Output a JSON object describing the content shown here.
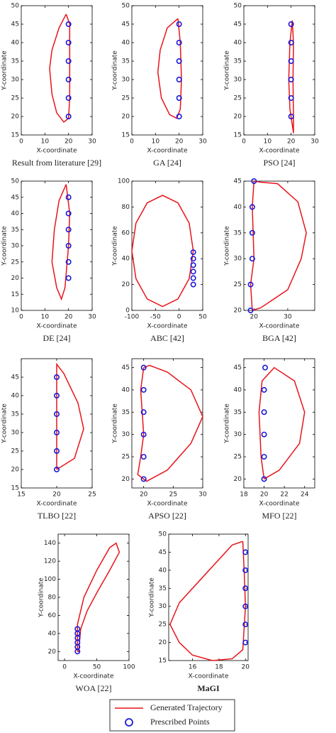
{
  "chart_data": [
    {
      "type": "line",
      "caption": "Result from literature [29]",
      "xlabel": "X-coordinate",
      "ylabel": "Y-coordinate",
      "xlim": [
        0,
        30
      ],
      "xticks": [
        0,
        10,
        20,
        30
      ],
      "ylim": [
        15,
        50
      ],
      "yticks": [
        15,
        20,
        25,
        30,
        35,
        40,
        45,
        50
      ],
      "series": [
        {
          "color": "#e8141b",
          "x": [
            19,
            16,
            13,
            12,
            13,
            15,
            18,
            20,
            20.5,
            20.5,
            20.5,
            19
          ],
          "y": [
            47.7,
            44,
            38,
            33,
            26,
            21,
            18.5,
            19.5,
            25,
            35,
            45,
            47.7
          ]
        },
        {
          "color": "#1a1ad6",
          "marker": "circle",
          "x": [
            20,
            20,
            20,
            20,
            20,
            20
          ],
          "y": [
            45,
            40,
            35,
            30,
            25,
            20
          ]
        }
      ]
    },
    {
      "type": "line",
      "caption": "GA [24]",
      "xlabel": "X-coordinate",
      "ylabel": "Y-coordinate",
      "xlim": [
        0,
        30
      ],
      "xticks": [
        0,
        10,
        20,
        30
      ],
      "ylim": [
        15,
        50
      ],
      "yticks": [
        15,
        20,
        25,
        30,
        35,
        40,
        45,
        50
      ],
      "series": [
        {
          "color": "#e8141b",
          "x": [
            19.5,
            15,
            12,
            11,
            12.5,
            16,
            19,
            20.5,
            21,
            20.5,
            19.5
          ],
          "y": [
            46.5,
            44,
            38,
            32,
            25,
            20.5,
            19.5,
            22,
            30,
            40,
            46.5
          ]
        },
        {
          "color": "#1a1ad6",
          "marker": "circle",
          "x": [
            20,
            20,
            20,
            20,
            20,
            20
          ],
          "y": [
            45,
            40,
            35,
            30,
            25,
            20
          ]
        }
      ]
    },
    {
      "type": "line",
      "caption": "PSO [24]",
      "xlabel": "X-coordinate",
      "ylabel": "Y-coordinate",
      "xlim": [
        0,
        30
      ],
      "xticks": [
        0,
        10,
        20,
        30
      ],
      "ylim": [
        15,
        50
      ],
      "yticks": [
        15,
        20,
        25,
        30,
        35,
        40,
        45,
        50
      ],
      "series": [
        {
          "color": "#e8141b",
          "x": [
            20.5,
            19.5,
            19,
            19.5,
            21,
            21,
            20.8,
            21,
            20.5
          ],
          "y": [
            46,
            40,
            30,
            22,
            15.5,
            20,
            30,
            40,
            46
          ]
        },
        {
          "color": "#1a1ad6",
          "marker": "circle",
          "x": [
            20,
            20,
            20,
            20,
            20,
            20
          ],
          "y": [
            45,
            40,
            35,
            30,
            25,
            20
          ]
        }
      ]
    },
    {
      "type": "line",
      "caption": "DE [24]",
      "xlabel": "X-coordinate",
      "ylabel": "Y-coordinate",
      "xlim": [
        0,
        30
      ],
      "xticks": [
        0,
        10,
        20,
        30
      ],
      "ylim": [
        10,
        50
      ],
      "yticks": [
        10,
        15,
        20,
        25,
        30,
        35,
        40,
        45,
        50
      ],
      "series": [
        {
          "color": "#e8141b",
          "x": [
            19,
            16,
            14,
            13,
            15,
            17,
            18.5,
            20,
            20.5,
            19
          ],
          "y": [
            49,
            44,
            35,
            25,
            17,
            13.5,
            17,
            30,
            40,
            49
          ]
        },
        {
          "color": "#1a1ad6",
          "marker": "circle",
          "x": [
            20,
            20,
            20,
            20,
            20,
            20
          ],
          "y": [
            45,
            40,
            35,
            30,
            25,
            20
          ]
        }
      ]
    },
    {
      "type": "line",
      "caption": "ABC [42]",
      "xlabel": "X-coordinate",
      "ylabel": "Y-coordinate",
      "xlim": [
        -100,
        50
      ],
      "xticks": [
        -100,
        -50,
        0,
        50
      ],
      "ylim": [
        0,
        100
      ],
      "yticks": [
        0,
        20,
        40,
        60,
        80,
        100
      ],
      "series": [
        {
          "color": "#e8141b",
          "x": [
            30,
            21.3,
            -2.5,
            -35,
            -67.5,
            -91.3,
            -100,
            -91.3,
            -67.5,
            -35,
            -2.5,
            21.3,
            30
          ],
          "y": [
            46,
            67.5,
            83.2,
            89,
            83.2,
            67.5,
            46,
            24.5,
            8.8,
            3,
            8.8,
            24.5,
            46
          ]
        },
        {
          "color": "#1a1ad6",
          "marker": "circle",
          "x": [
            30,
            30,
            30,
            30,
            30,
            30
          ],
          "y": [
            45,
            40,
            35,
            30,
            25,
            20
          ]
        }
      ]
    },
    {
      "type": "line",
      "caption": "BGA [42]",
      "xlabel": "X-coordinate",
      "ylabel": "Y-coordinate",
      "xlim": [
        17,
        38
      ],
      "xticks": [
        20,
        30
      ],
      "ylim": [
        20,
        45
      ],
      "yticks": [
        20,
        25,
        30,
        35,
        40,
        45
      ],
      "series": [
        {
          "color": "#e8141b",
          "x": [
            20,
            19.5,
            20,
            19,
            19.5,
            22,
            30,
            34,
            35.5,
            33,
            27,
            22,
            20
          ],
          "y": [
            45,
            40,
            30,
            25,
            20,
            20.5,
            24,
            30,
            35,
            41,
            44.5,
            44.8,
            45
          ]
        },
        {
          "color": "#1a1ad6",
          "marker": "circle",
          "x": [
            20,
            19.5,
            19.5,
            19.5,
            19,
            19
          ],
          "y": [
            45,
            40,
            35,
            30,
            25,
            20
          ]
        }
      ]
    },
    {
      "type": "line",
      "caption": "TLBO [22]",
      "xlabel": "X-coordinate",
      "ylabel": "Y-coordinate",
      "xlim": [
        15,
        25
      ],
      "xticks": [
        15,
        20,
        25
      ],
      "ylim": [
        15,
        50
      ],
      "yticks": [
        15,
        20,
        25,
        30,
        35,
        40,
        45
      ],
      "series": [
        {
          "color": "#e8141b",
          "x": [
            20,
            20,
            21,
            23,
            23.8,
            22.5,
            20
          ],
          "y": [
            20,
            48.5,
            46,
            38,
            31,
            23,
            20
          ]
        },
        {
          "color": "#1a1ad6",
          "marker": "circle",
          "x": [
            20,
            20,
            20,
            20,
            20,
            20
          ],
          "y": [
            45,
            40,
            35,
            30,
            25,
            20
          ]
        }
      ]
    },
    {
      "type": "line",
      "caption": "APSO [22]",
      "xlabel": "X-coordinate",
      "ylabel": "Y-coordinate",
      "xlim": [
        18,
        30
      ],
      "xticks": [
        20,
        25,
        30
      ],
      "ylim": [
        18,
        47
      ],
      "yticks": [
        20,
        25,
        30,
        35,
        40,
        45
      ],
      "series": [
        {
          "color": "#e8141b",
          "x": [
            20,
            19.5,
            20,
            19.5,
            19,
            20.5,
            24,
            28,
            30,
            28,
            24,
            21,
            20
          ],
          "y": [
            45,
            40,
            30,
            25,
            21,
            19.5,
            22,
            28,
            34,
            40,
            44,
            45.5,
            45
          ]
        },
        {
          "color": "#1a1ad6",
          "marker": "circle",
          "x": [
            20,
            20,
            20,
            20,
            20,
            20
          ],
          "y": [
            45,
            40,
            35,
            30,
            25,
            20
          ]
        }
      ]
    },
    {
      "type": "line",
      "caption": "MFO [22]",
      "xlabel": "X-coordinate",
      "ylabel": "Y-coordinate",
      "xlim": [
        18,
        25
      ],
      "xticks": [
        18,
        20,
        22,
        24
      ],
      "ylim": [
        18,
        47
      ],
      "yticks": [
        20,
        25,
        30,
        35,
        40,
        45
      ],
      "series": [
        {
          "color": "#e8141b",
          "x": [
            20,
            19.7,
            19.5,
            19.8,
            21,
            23,
            24,
            23.5,
            21.5,
            20
          ],
          "y": [
            20,
            25,
            35,
            42,
            45,
            42,
            35,
            28,
            22,
            20
          ]
        },
        {
          "color": "#1a1ad6",
          "marker": "circle",
          "x": [
            20.1,
            20,
            20,
            20,
            20,
            20
          ],
          "y": [
            45,
            40,
            35,
            30,
            25,
            20
          ]
        }
      ]
    },
    {
      "type": "line",
      "caption": "WOA [22]",
      "xlabel": "X-coordinate",
      "ylabel": "Y-coordinate",
      "xlim": [
        -10,
        100
      ],
      "xticks": [
        0,
        50,
        100
      ],
      "ylim": [
        10,
        150
      ],
      "yticks": [
        20,
        40,
        60,
        80,
        100,
        120,
        140
      ],
      "series": [
        {
          "color": "#e8141b",
          "x": [
            20,
            20,
            30,
            50,
            70,
            80,
            85,
            70,
            50,
            35,
            25,
            22,
            20
          ],
          "y": [
            20,
            50,
            80,
            110,
            135,
            140,
            130,
            110,
            85,
            65,
            45,
            20,
            20
          ]
        },
        {
          "color": "#1a1ad6",
          "marker": "circle",
          "x": [
            20,
            20,
            20,
            20,
            20,
            20
          ],
          "y": [
            45,
            40,
            35,
            30,
            25,
            20
          ]
        }
      ]
    },
    {
      "type": "line",
      "caption": "MaGI",
      "caption_bold": true,
      "xlabel": "X-coordinate",
      "ylabel": "Y-coordinate",
      "xlim": [
        14.2,
        20.2
      ],
      "xticks": [
        16,
        18,
        20
      ],
      "ylim": [
        15,
        50
      ],
      "yticks": [
        15,
        20,
        25,
        30,
        35,
        40,
        45,
        50
      ],
      "series": [
        {
          "color": "#e8141b",
          "x": [
            19.8,
            19.9,
            20,
            19.8,
            19,
            17.5,
            16,
            15,
            14.3,
            15,
            17,
            19,
            19.8
          ],
          "y": [
            48,
            40,
            30,
            18,
            15.5,
            15,
            16.5,
            20,
            25,
            31,
            39,
            47,
            48
          ]
        },
        {
          "color": "#1a1ad6",
          "marker": "circle",
          "x": [
            20,
            20,
            20,
            20,
            20,
            20
          ],
          "y": [
            45,
            40,
            35,
            30,
            25,
            20
          ]
        }
      ]
    }
  ],
  "legend": [
    {
      "name": "Generated Trajectory",
      "color": "#e8141b"
    },
    {
      "name": "Prescribed Points",
      "color": "#1a1ad6",
      "marker": "circle"
    }
  ]
}
